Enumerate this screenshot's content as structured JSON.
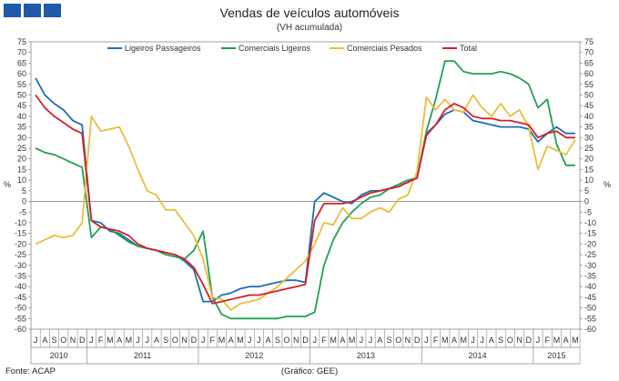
{
  "title": "Vendas de veículos automóveis",
  "subtitle": "(VH acumulada)",
  "footer": {
    "source": "Fonte: ACAP",
    "note": "(Gráfico: GEE)"
  },
  "colors": {
    "logo": "#1f5aa8"
  },
  "chart_data": {
    "type": "line",
    "ylabel_left": "%",
    "ylabel_right": "%",
    "ylim": [
      -60,
      75
    ],
    "yticks": [
      75,
      70,
      65,
      60,
      55,
      50,
      45,
      40,
      35,
      30,
      25,
      20,
      15,
      10,
      5,
      0,
      -5,
      -10,
      -15,
      -20,
      -25,
      -30,
      -35,
      -40,
      -45,
      -50,
      -55,
      -60
    ],
    "month_labels": [
      "J",
      "A",
      "S",
      "O",
      "N",
      "D",
      "J",
      "F",
      "M",
      "A",
      "M",
      "J",
      "J",
      "A",
      "S",
      "O",
      "N",
      "D",
      "J",
      "F",
      "M",
      "A",
      "M",
      "J",
      "J",
      "A",
      "S",
      "O",
      "N",
      "D",
      "J",
      "F",
      "M",
      "A",
      "M",
      "J",
      "J",
      "A",
      "S",
      "O",
      "N",
      "D",
      "J",
      "F",
      "M",
      "A",
      "M",
      "J",
      "J",
      "A",
      "S",
      "O",
      "N",
      "D",
      "J",
      "F",
      "M",
      "A",
      "M"
    ],
    "years": [
      {
        "label": "2010",
        "start": 0,
        "count": 6
      },
      {
        "label": "2011",
        "start": 6,
        "count": 12
      },
      {
        "label": "2012",
        "start": 18,
        "count": 12
      },
      {
        "label": "2013",
        "start": 30,
        "count": 12
      },
      {
        "label": "2014",
        "start": 42,
        "count": 12
      },
      {
        "label": "2015",
        "start": 54,
        "count": 5
      }
    ],
    "legend": "top",
    "grid": false,
    "series": [
      {
        "name": "Ligeiros Passageiros",
        "color": "#1f6db5",
        "values": [
          58,
          50,
          46,
          43,
          38,
          36,
          -9,
          -10,
          -14,
          -15,
          -18,
          -21,
          -22,
          -23,
          -24,
          -25,
          -28,
          -32,
          -47,
          -47,
          -44,
          -43,
          -41,
          -40,
          -40,
          -39,
          -38,
          -37,
          -37,
          -38,
          0,
          4,
          2,
          0,
          -1,
          3,
          5,
          5,
          6,
          7,
          9,
          11,
          32,
          36,
          41,
          43,
          42,
          38,
          37,
          36,
          35,
          35,
          35,
          34,
          28,
          32,
          35,
          32,
          32
        ]
      },
      {
        "name": "Comerciais Ligeiros",
        "color": "#22a052",
        "values": [
          25,
          23,
          22,
          20,
          18,
          16,
          -17,
          -12,
          -13,
          -16,
          -19,
          -21,
          -22,
          -23,
          -25,
          -26,
          -27,
          -23,
          -14,
          -45,
          -53,
          -55,
          -55,
          -55,
          -55,
          -55,
          -55,
          -54,
          -54,
          -54,
          -52,
          -30,
          -18,
          -10,
          -5,
          -1,
          2,
          3,
          6,
          8,
          10,
          11,
          33,
          48,
          66,
          66,
          61,
          60,
          60,
          60,
          61,
          60,
          58,
          55,
          44,
          48,
          27,
          17,
          17
        ]
      },
      {
        "name": "Comerciais Pesados",
        "color": "#e9be3a",
        "values": [
          -20,
          -18,
          -16,
          -17,
          -16,
          -10,
          40,
          33,
          34,
          35,
          26,
          15,
          5,
          3,
          -4,
          -4,
          -10,
          -16,
          -27,
          -45,
          -46,
          -51,
          -48,
          -47,
          -46,
          -43,
          -40,
          -36,
          -32,
          -28,
          -20,
          -10,
          -11,
          -3,
          -8,
          -8,
          -5,
          -3,
          -5,
          1,
          3,
          14,
          49,
          43,
          48,
          43,
          42,
          50,
          44,
          40,
          46,
          40,
          43,
          35,
          15,
          26,
          24,
          22,
          29
        ]
      },
      {
        "name": "Total",
        "color": "#d42027",
        "values": [
          50,
          44,
          40,
          37,
          34,
          32,
          -9,
          -12,
          -13,
          -14,
          -16,
          -20,
          -22,
          -23,
          -24,
          -25,
          -27,
          -31,
          -39,
          -48,
          -47,
          -46,
          -45,
          -44,
          -44,
          -43,
          -42,
          -41,
          -40,
          -39,
          -9,
          -1,
          -1,
          -1,
          0,
          2,
          4,
          5,
          6,
          7,
          9,
          11,
          31,
          36,
          43,
          46,
          44,
          40,
          39,
          39,
          38,
          38,
          37,
          36,
          30,
          32,
          33,
          30,
          30
        ]
      }
    ]
  }
}
